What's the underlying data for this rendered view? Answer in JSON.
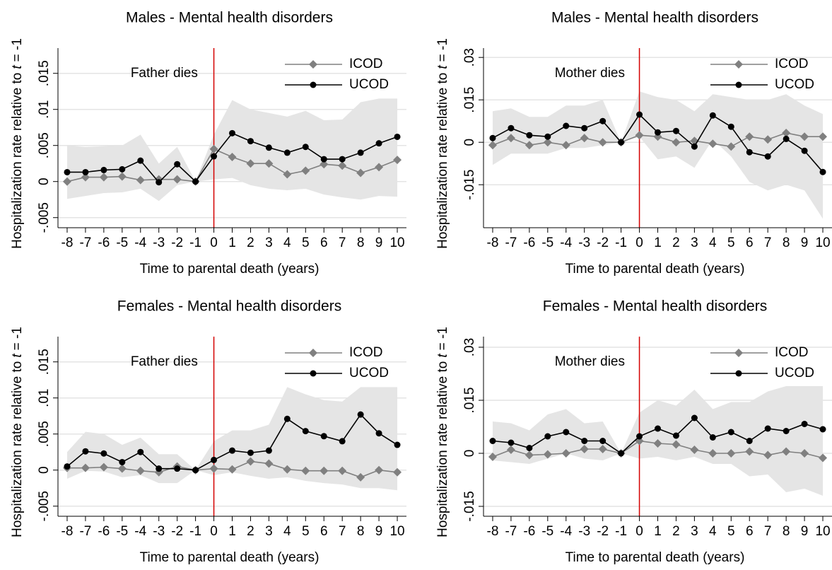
{
  "chart_data": [
    {
      "type": "line",
      "title": "Males - Mental health disorders",
      "xlabel": "Time to parental death (years)",
      "ylabel": [
        "Hospitalization rate relative to",
        "t",
        "= -1"
      ],
      "annotation": "Father dies",
      "annotation_color": "#e8000b",
      "vline": 0,
      "vline_color": "#d40000",
      "x": [
        -8,
        -7,
        -6,
        -5,
        -4,
        -3,
        -2,
        -1,
        0,
        1,
        2,
        3,
        4,
        5,
        6,
        7,
        8,
        9,
        10
      ],
      "xlim": [
        -8.5,
        10.5
      ],
      "xticks": [
        -8,
        -7,
        -6,
        -5,
        -4,
        -3,
        -2,
        -1,
        0,
        1,
        2,
        3,
        4,
        5,
        6,
        7,
        8,
        9,
        10
      ],
      "ylim": [
        -0.0064,
        0.0185
      ],
      "yticks": [
        {
          "value": -0.005,
          "label": "-.005"
        },
        0,
        {
          "value": 0.005,
          "label": ".005"
        },
        {
          "value": 0.01,
          "label": ".01"
        },
        {
          "value": 0.015,
          "label": ".015"
        }
      ],
      "grid": true,
      "legend": "upper right",
      "ci_color": "#e5e5e5",
      "ci_upper": [
        0.005,
        0.0048,
        0.0049,
        0.005,
        0.0065,
        0.0025,
        0.0048,
        0,
        0.0065,
        0.0113,
        0.01,
        0.0095,
        0.009,
        0.0098,
        0.0085,
        0.0086,
        0.011,
        0.0115,
        0.0115
      ],
      "ci_lower": [
        -0.0024,
        -0.002,
        -0.0016,
        -0.0015,
        -0.001,
        -0.0027,
        -0.0005,
        0,
        0.0003,
        0.0005,
        -0.0005,
        -0.001,
        -0.0012,
        -0.001,
        -0.0018,
        -0.0022,
        -0.0025,
        -0.002,
        -0.0021
      ],
      "series": [
        {
          "name": "ICOD",
          "color": "#808080",
          "marker": "diamond",
          "values": [
            0,
            0.0006,
            0.0006,
            0.0007,
            0.0002,
            0.0003,
            0.0003,
            0,
            0.0045,
            0.0034,
            0.0025,
            0.0025,
            0.001,
            0.0015,
            0.0024,
            0.0022,
            0.0012,
            0.002,
            0.003
          ]
        },
        {
          "name": "UCOD",
          "color": "#000000",
          "marker": "circle",
          "values": [
            0.0013,
            0.0013,
            0.0016,
            0.0017,
            0.0029,
            -0.0001,
            0.0024,
            0,
            0.0035,
            0.0067,
            0.0056,
            0.0047,
            0.004,
            0.0048,
            0.0031,
            0.0031,
            0.004,
            0.0053,
            0.0062
          ]
        }
      ]
    },
    {
      "type": "line",
      "title": "Males - Mental health disorders",
      "xlabel": "Time to parental death (years)",
      "ylabel": [
        "Hospitalization rate relative to",
        "t",
        "= -1"
      ],
      "annotation": "Mother dies",
      "annotation_color": "#e8000b",
      "vline": 0,
      "vline_color": "#d40000",
      "x": [
        -8,
        -7,
        -6,
        -5,
        -4,
        -3,
        -2,
        -1,
        0,
        1,
        2,
        3,
        4,
        5,
        6,
        7,
        8,
        9,
        10
      ],
      "xlim": [
        -8.5,
        10.5
      ],
      "xticks": [
        -8,
        -7,
        -6,
        -5,
        -4,
        -3,
        -2,
        -1,
        0,
        1,
        2,
        3,
        4,
        5,
        6,
        7,
        8,
        9,
        10
      ],
      "ylim": [
        -0.0302,
        0.0333
      ],
      "yticks": [
        {
          "value": -0.015,
          "label": "-.015"
        },
        0,
        {
          "value": 0.015,
          "label": ".015"
        },
        {
          "value": 0.03,
          "label": ".03"
        }
      ],
      "grid": true,
      "legend": "upper right",
      "ci_color": "#e5e5e5",
      "ci_upper": [
        0.011,
        0.012,
        0.009,
        0.009,
        0.013,
        0.013,
        0.015,
        0,
        0.018,
        0.016,
        0.015,
        0.011,
        0.017,
        0.016,
        0.015,
        0.015,
        0.017,
        0.013,
        0.01
      ],
      "ci_lower": [
        -0.008,
        -0.004,
        -0.004,
        -0.004,
        -0.002,
        -0.002,
        -0.001,
        0,
        0.002,
        -0.006,
        -0.005,
        -0.009,
        0.001,
        -0.005,
        -0.014,
        -0.017,
        -0.015,
        -0.017,
        -0.027
      ],
      "series": [
        {
          "name": "ICOD",
          "color": "#808080",
          "marker": "diamond",
          "values": [
            -0.001,
            0.0015,
            -0.001,
            0,
            -0.001,
            0.0015,
            0,
            0,
            0.0025,
            0.002,
            0,
            0.0005,
            -0.0005,
            -0.0015,
            0.002,
            0.001,
            0.0033,
            0.002,
            0.002
          ]
        },
        {
          "name": "UCOD",
          "color": "#000000",
          "marker": "circle",
          "values": [
            0.0015,
            0.005,
            0.0025,
            0.002,
            0.0058,
            0.005,
            0.0075,
            0,
            0.0098,
            0.0035,
            0.004,
            -0.0015,
            0.0095,
            0.0055,
            -0.0035,
            -0.005,
            0.0012,
            -0.003,
            -0.0105
          ]
        }
      ]
    },
    {
      "type": "line",
      "title": "Females - Mental health disorders",
      "xlabel": "Time to parental death (years)",
      "ylabel": [
        "Hospitalization rate relative to",
        "t",
        "= -1"
      ],
      "annotation": "Father dies",
      "annotation_color": "#e8000b",
      "vline": 0,
      "vline_color": "#d40000",
      "x": [
        -8,
        -7,
        -6,
        -5,
        -4,
        -3,
        -2,
        -1,
        0,
        1,
        2,
        3,
        4,
        5,
        6,
        7,
        8,
        9,
        10
      ],
      "xlim": [
        -8.5,
        10.5
      ],
      "xticks": [
        -8,
        -7,
        -6,
        -5,
        -4,
        -3,
        -2,
        -1,
        0,
        1,
        2,
        3,
        4,
        5,
        6,
        7,
        8,
        9,
        10
      ],
      "ylim": [
        -0.0064,
        0.0185
      ],
      "yticks": [
        {
          "value": -0.005,
          "label": "-.005"
        },
        0,
        {
          "value": 0.005,
          "label": ".005"
        },
        {
          "value": 0.01,
          "label": ".01"
        },
        {
          "value": 0.015,
          "label": ".015"
        }
      ],
      "grid": true,
      "legend": "upper right",
      "ci_color": "#e5e5e5",
      "ci_upper": [
        0.0025,
        0.0053,
        0.005,
        0.0035,
        0.0045,
        0.0022,
        0.0022,
        0,
        0.004,
        0.0055,
        0.0055,
        0.0063,
        0.0115,
        0.0105,
        0.0097,
        0.0095,
        0.0115,
        0.0115,
        0.0115
      ],
      "ci_lower": [
        -0.0012,
        -0.0001,
        -0.0002,
        -0.001,
        -0.0007,
        -0.0018,
        -0.0018,
        0,
        -0.0007,
        -0.0003,
        -0.0008,
        -0.0012,
        -0.001,
        -0.0015,
        -0.0018,
        -0.002,
        -0.0025,
        -0.0025,
        -0.0028
      ],
      "series": [
        {
          "name": "ICOD",
          "color": "#808080",
          "marker": "diamond",
          "values": [
            0.0003,
            0.0003,
            0.0004,
            0.0002,
            -0.0001,
            -0.0003,
            0.0005,
            0,
            0.0002,
            0.0001,
            0.0012,
            0.0009,
            0.0001,
            -0.0001,
            -0.0001,
            -0.0001,
            -0.001,
            0,
            -0.0003
          ]
        },
        {
          "name": "UCOD",
          "color": "#000000",
          "marker": "circle",
          "values": [
            0.0005,
            0.0026,
            0.0023,
            0.0011,
            0.0025,
            0.0002,
            0.0002,
            0,
            0.0014,
            0.0027,
            0.0024,
            0.0027,
            0.0071,
            0.0054,
            0.0047,
            0.004,
            0.0077,
            0.0051,
            0.0035
          ]
        }
      ]
    },
    {
      "type": "line",
      "title": "Females - Mental health disorders",
      "xlabel": "Time to parental death (years)",
      "ylabel": [
        "Hospitalization rate relative to",
        "t",
        "= -1"
      ],
      "annotation": "Mother dies",
      "annotation_color": "#e8000b",
      "vline": 0,
      "vline_color": "#d40000",
      "x": [
        -8,
        -7,
        -6,
        -5,
        -4,
        -3,
        -2,
        -1,
        0,
        1,
        2,
        3,
        4,
        5,
        6,
        7,
        8,
        9,
        10
      ],
      "xlim": [
        -8.5,
        10.5
      ],
      "xticks": [
        -8,
        -7,
        -6,
        -5,
        -4,
        -3,
        -2,
        -1,
        0,
        1,
        2,
        3,
        4,
        5,
        6,
        7,
        8,
        9,
        10
      ],
      "ylim": [
        -0.0178,
        0.033
      ],
      "yticks": [
        {
          "value": -0.015,
          "label": "-.015"
        },
        0,
        {
          "value": 0.015,
          "label": ".015"
        },
        {
          "value": 0.03,
          "label": ".03"
        }
      ],
      "grid": true,
      "legend": "upper right",
      "ci_color": "#e5e5e5",
      "ci_upper": [
        0.009,
        0.0085,
        0.0065,
        0.011,
        0.0125,
        0.0085,
        0.009,
        0,
        0.0115,
        0.015,
        0.0135,
        0.018,
        0.0125,
        0.0145,
        0.0145,
        0.0175,
        0.019,
        0.019,
        0.019
      ],
      "ci_lower": [
        -0.002,
        -0.0025,
        -0.003,
        -0.0015,
        0,
        -0.0015,
        -0.002,
        0,
        -0.0015,
        -0.001,
        -0.002,
        -0.001,
        -0.003,
        -0.003,
        -0.0065,
        -0.006,
        -0.011,
        -0.01,
        -0.012
      ],
      "series": [
        {
          "name": "ICOD",
          "color": "#808080",
          "marker": "diamond",
          "values": [
            -0.001,
            0.001,
            -0.0005,
            -0.0003,
            0,
            0.0012,
            0.0012,
            0,
            0.0035,
            0.0028,
            0.0025,
            0.001,
            0,
            0,
            0.0005,
            -0.0005,
            0.0005,
            0,
            -0.0013
          ]
        },
        {
          "name": "UCOD",
          "color": "#000000",
          "marker": "circle",
          "values": [
            0.0035,
            0.003,
            0.0015,
            0.0048,
            0.006,
            0.0035,
            0.0035,
            0,
            0.0048,
            0.007,
            0.005,
            0.01,
            0.0045,
            0.006,
            0.0035,
            0.007,
            0.0063,
            0.0083,
            0.0068
          ]
        }
      ]
    }
  ]
}
